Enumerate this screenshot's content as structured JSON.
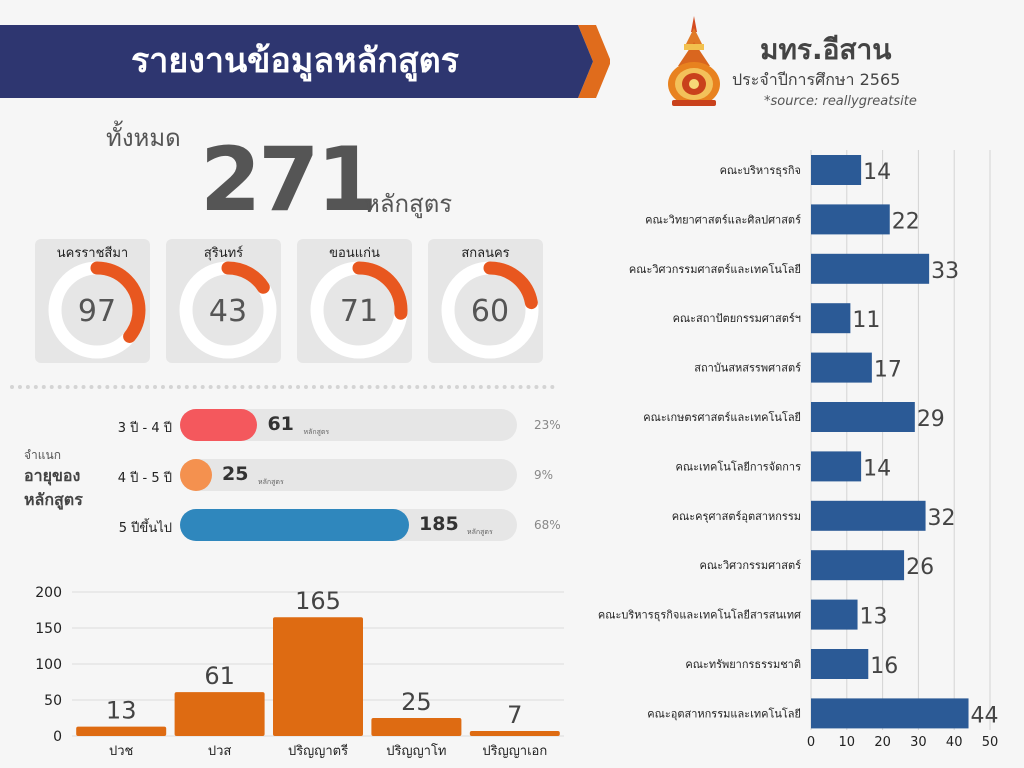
{
  "header": {
    "title": "รายงานข้อมูลหลักสูตร",
    "banner_color": "#2e3670",
    "accent_color": "#e06c1c"
  },
  "org": {
    "title": "มทร.อีสาน",
    "subtitle": "ประจำปีการศึกษา 2565",
    "source": "*source: reallygreatsite"
  },
  "summary": {
    "total_label": "ทั้งหมด",
    "total_value": "271",
    "total_unit": "หลักสูตร"
  },
  "campuses": [
    {
      "name": "นครราชสีมา",
      "value": "97"
    },
    {
      "name": "สุรินทร์",
      "value": "43"
    },
    {
      "name": "ขอนแก่น",
      "value": "71"
    },
    {
      "name": "สกลนคร",
      "value": "60"
    }
  ],
  "age": {
    "caption_small": "จำแนก",
    "caption_line1": "อายุของ",
    "caption_line2": "หลักสูตร",
    "unit": "หลักสูตร",
    "rows": [
      {
        "label": "3 ปี - 4 ปี",
        "value": "61",
        "fraction": 0.23,
        "pct": "23%",
        "color": "#f4585d"
      },
      {
        "label": "4 ปี - 5 ปี",
        "value": "25",
        "fraction": 0.09,
        "pct": "9%",
        "color": "#f4914f"
      },
      {
        "label": "5 ปีขึ้นไป",
        "value": "185",
        "fraction": 0.68,
        "pct": "68%",
        "color": "#2f87bd"
      }
    ]
  },
  "chart_data": [
    {
      "type": "bar",
      "orientation": "vertical",
      "categories": [
        "ปวช",
        "ปวส",
        "ปริญญาตรี",
        "ปริญญาโท",
        "ปริญญาเอก"
      ],
      "values": [
        13,
        61,
        165,
        25,
        7
      ],
      "ylim": [
        0,
        200
      ],
      "yticks": [
        0,
        50,
        100,
        150,
        200
      ],
      "color": "#de6b12",
      "grid": true
    },
    {
      "type": "bar",
      "orientation": "horizontal",
      "categories": [
        "คณะบริหารธุรกิจ",
        "คณะวิทยาศาสตร์และศิลปศาสตร์",
        "คณะวิศวกรรมศาสตร์และเทคโนโลยี",
        "คณะสถาปัตยกรรมศาสตร์ฯ",
        "สถาบันสหสรรพศาสตร์",
        "คณะเกษตรศาสตร์และเทคโนโลยี",
        "คณะเทคโนโลยีการจัดการ",
        "คณะครุศาสตร์อุตสาหกรรม",
        "คณะวิศวกรรมศาสตร์",
        "คณะบริหารธุรกิจและเทคโนโลยีสารสนเทศ",
        "คณะทรัพยากรธรรมชาติ",
        "คณะอุตสาหกรรมและเทคโนโลยี"
      ],
      "values": [
        14,
        22,
        33,
        11,
        17,
        29,
        14,
        32,
        26,
        13,
        16,
        44
      ],
      "xlim": [
        0,
        50
      ],
      "xticks": [
        0,
        10,
        20,
        30,
        40,
        50
      ],
      "color": "#2b5a96",
      "grid": true
    }
  ]
}
